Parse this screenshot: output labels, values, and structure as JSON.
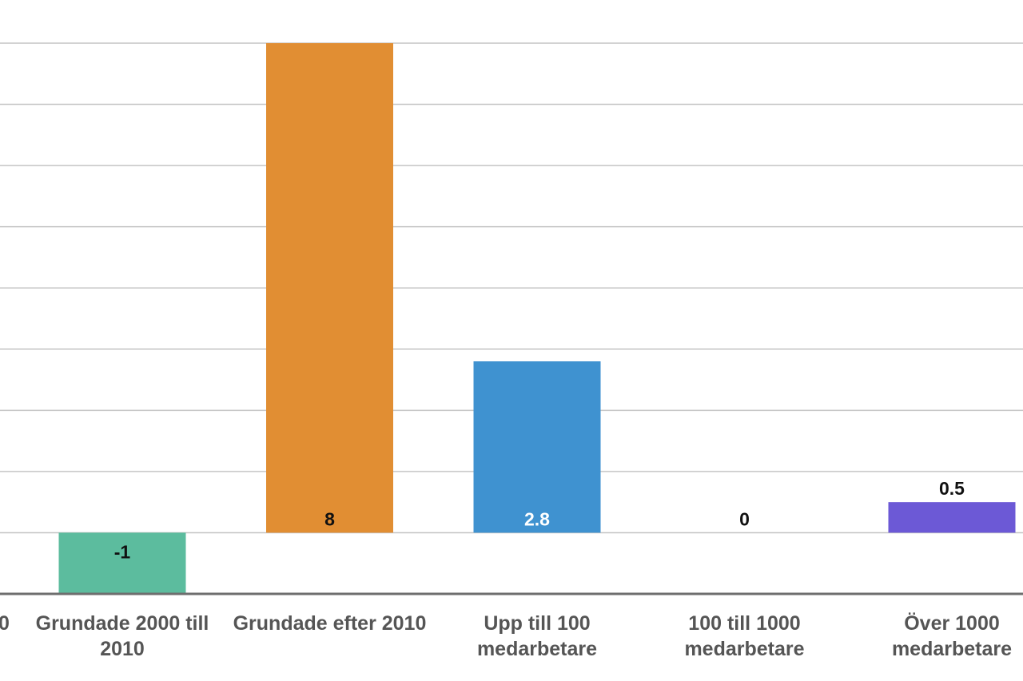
{
  "chart_data": {
    "type": "bar",
    "categories": [
      "Grundade 2000 till 2010",
      "Grundade efter 2010",
      "Upp till 100 medarbetare",
      "100 till 1000 medarbetare",
      "Över 1000 medarbetare"
    ],
    "category_label_lines": [
      [
        "Grundade 2000 till",
        "2010"
      ],
      [
        "Grundade efter 2010"
      ],
      [
        "Upp till 100",
        "medarbetare"
      ],
      [
        "100 till 1000",
        "medarbetare"
      ],
      [
        "Över 1000",
        "medarbetare"
      ]
    ],
    "values": [
      -1,
      8,
      2.8,
      0,
      0.5
    ],
    "data_labels": [
      "-1",
      "8",
      "2.8",
      "0",
      "0.5"
    ],
    "bar_colors": [
      "#5cbc9e",
      "#e18e33",
      "#3f92d0",
      "#ffffff",
      "#6c59d6"
    ],
    "label_colors": [
      "#111111",
      "#111111",
      "#ffffff",
      "#111111",
      "#111111"
    ],
    "ylim": [
      -1,
      8
    ],
    "y_gridline_step": 1,
    "grid": true,
    "cut_off_left_label": "0",
    "title": "",
    "xlabel": "",
    "ylabel": ""
  }
}
